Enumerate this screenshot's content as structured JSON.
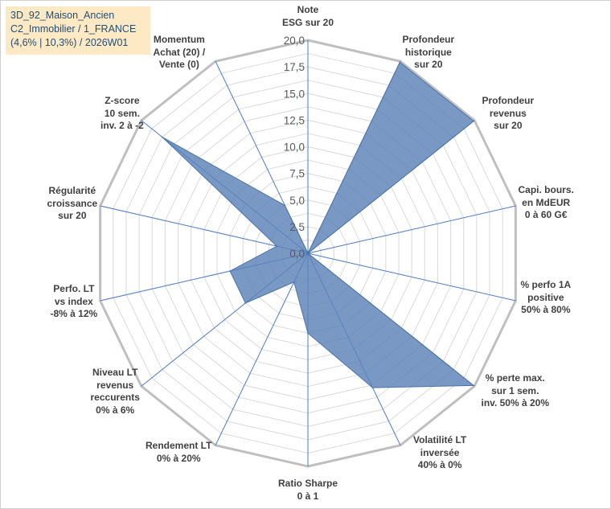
{
  "title_lines": [
    "3D_92_Maison_Ancien",
    "C2_Immobilier / 1_FRANCE",
    "(4,6% | 10,3%) / 2026W01"
  ],
  "chart_data": {
    "type": "radar",
    "scale_min": 0,
    "scale_max": 20,
    "ticks": [
      "0,0",
      "2,5",
      "5,0",
      "7,5",
      "10,0",
      "12,5",
      "15,0",
      "17,5",
      "20,0"
    ],
    "tick_values": [
      0,
      2.5,
      5,
      7.5,
      10,
      12.5,
      15,
      17.5,
      20
    ],
    "grid_rings": 16,
    "fill_color": "#5b82b7",
    "axes": [
      {
        "label": [
          "Note",
          "ESG sur 20"
        ],
        "value": 0
      },
      {
        "label": [
          "Profondeur",
          "historique",
          "sur 20"
        ],
        "value": 19.9
      },
      {
        "label": [
          "Profondeur",
          "revenus",
          "sur 20"
        ],
        "value": 19.9
      },
      {
        "label": [
          "Capi. bours.",
          "en MdEUR",
          "0 à 60 G€"
        ],
        "value": 0
      },
      {
        "label": [
          "% perfo 1A",
          "positive",
          "50% à 80%"
        ],
        "value": 0
      },
      {
        "label": [
          "% perte max.",
          "sur 1 sem.",
          "inv. 50% à 20%"
        ],
        "value": 19.9
      },
      {
        "label": [
          "Volatilité LT",
          "inversée",
          "40% à 0%"
        ],
        "value": 14.0
      },
      {
        "label": [
          "Ratio Sharpe",
          "0 à 1"
        ],
        "value": 7.5
      },
      {
        "label": [
          "Rendement LT",
          "0% à 20%"
        ],
        "value": 3.0
      },
      {
        "label": [
          "Niveau LT",
          "revenus",
          "reccurents",
          "0% à 6%"
        ],
        "value": 7.5
      },
      {
        "label": [
          "Perfo. LT",
          "vs index",
          "-8% à 12%"
        ],
        "value": 7.5
      },
      {
        "label": [
          "Régularité",
          "croissance",
          "sur 20"
        ],
        "value": 3.0
      },
      {
        "label": [
          "Z-score",
          "10 sem.",
          "inv. 2 à -2"
        ],
        "value": 17.5
      },
      {
        "label": [
          "Momentum",
          "Achat (20) /",
          "Vente (0)"
        ],
        "value": 5.0
      }
    ]
  }
}
